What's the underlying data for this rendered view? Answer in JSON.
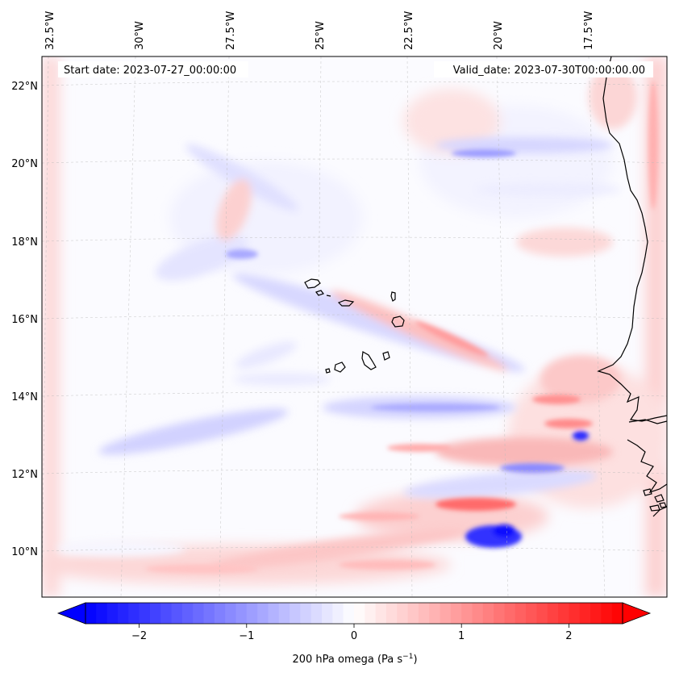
{
  "map": {
    "start_label": "Start date: 2023-07-27_00:00:00",
    "valid_label": "Valid_date: 2023-07-30T00:00:00.00",
    "lon_labels": [
      "32.5°W",
      "30°W",
      "27.5°W",
      "25°W",
      "22.5°W",
      "20°W",
      "17.5°W"
    ],
    "lat_labels": [
      "22°N",
      "20°N",
      "18°N",
      "16°N",
      "14°N",
      "12°N",
      "10°N"
    ],
    "colorbar": {
      "ticks": [
        "−2",
        "−1",
        "0",
        "1",
        "2"
      ],
      "tick_values": [
        -2,
        -1,
        0,
        1,
        2
      ],
      "range": [
        -2.5,
        2.5
      ],
      "label_main": "200 hPa omega (Pa s",
      "label_sup": "−1",
      "label_close": ")",
      "cmap": "bwr",
      "min_color": "#0000ff",
      "mid_color": "#ffffff",
      "max_color": "#ff0000",
      "extend": "both"
    }
  }
}
